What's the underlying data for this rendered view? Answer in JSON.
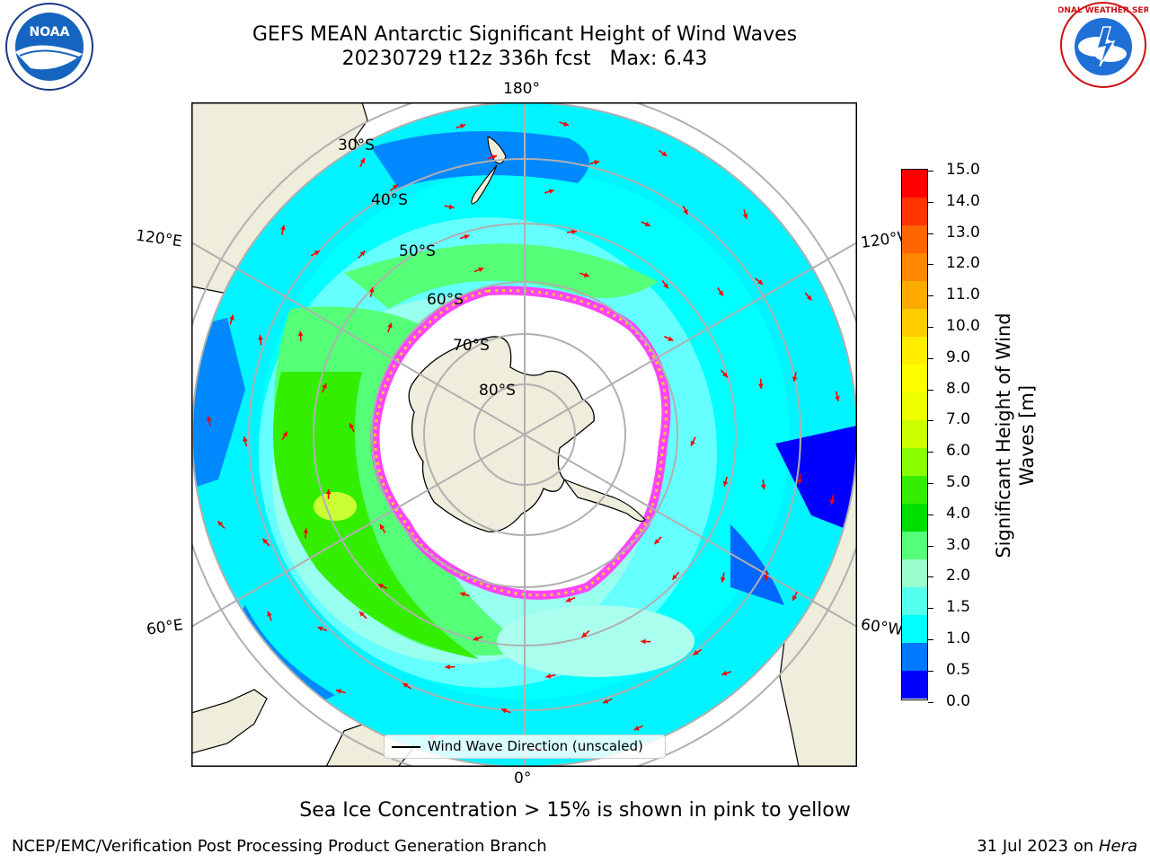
{
  "title": {
    "line1": "GEFS MEAN Antarctic Significant Height of Wind Waves",
    "line2": "20230729 t12z 336h fcst   Max: 6.43"
  },
  "logos": {
    "noaa_text": "NOAA",
    "nws_text": "NATIONAL WEATHER SERVICE"
  },
  "map": {
    "longitude_labels": {
      "top": "180°",
      "bottom": "0°",
      "upper_left": "120°E",
      "lower_left": "60°E",
      "upper_right": "120°W",
      "lower_right": "60°W"
    },
    "latitude_labels": [
      "30°S",
      "40°S",
      "50°S",
      "60°S",
      "70°S",
      "80°S"
    ],
    "legend_label": "Wind Wave Direction (unscaled)",
    "arrow_color": "#ff0000",
    "land_color": "#efeddb",
    "ice_edge_color": "#ff44ff"
  },
  "colorbar": {
    "title_line1": "Significant Height of Wind",
    "title_line2": "Waves [m]",
    "ticks": [
      "15.0",
      "14.0",
      "13.0",
      "12.0",
      "11.0",
      "10.0",
      "9.0",
      "8.0",
      "7.0",
      "6.0",
      "5.0",
      "4.0",
      "3.0",
      "2.0",
      "1.5",
      "1.0",
      "0.5",
      "0.0"
    ],
    "colors_top_to_bottom": [
      "#ff0000",
      "#ff3300",
      "#ff6600",
      "#ff8800",
      "#ffaa00",
      "#ffcc00",
      "#ffee00",
      "#ffff00",
      "#eeff00",
      "#ccff00",
      "#88ff00",
      "#33ee00",
      "#00dd00",
      "#55ff77",
      "#99ffcc",
      "#55ffee",
      "#00ffff",
      "#0077ff",
      "#0000ff"
    ]
  },
  "note": "Sea Ice Concentration > 15% is shown in pink to yellow",
  "footer": {
    "left": "NCEP/EMC/Verification Post Processing Product Generation Branch",
    "right_prefix": "31 Jul 2023 on ",
    "right_italic": "Hera"
  }
}
